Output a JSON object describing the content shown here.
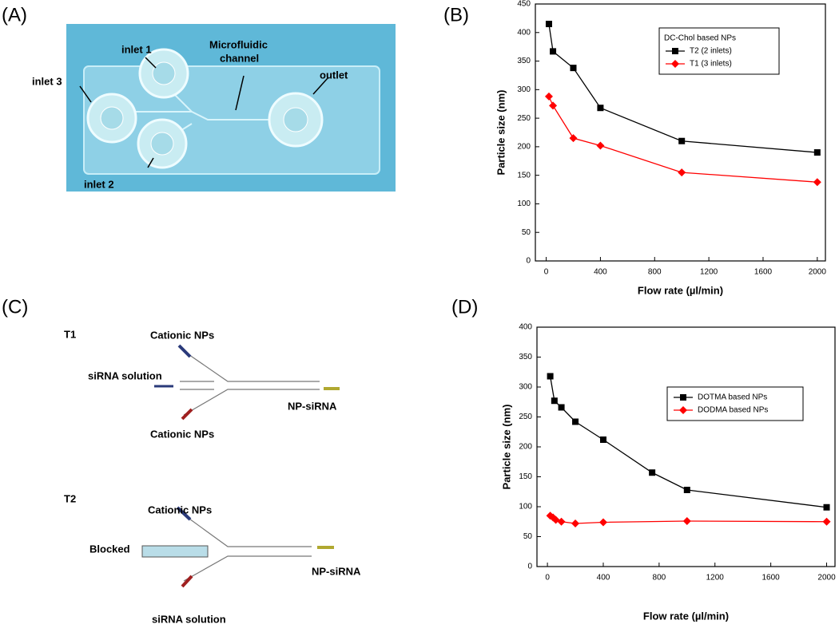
{
  "panels": [
    "(A)",
    "(B)",
    "(C)",
    "(D)"
  ],
  "photo": {
    "inlet_1": "inlet 1",
    "inlet_3": "inlet 3",
    "channel": [
      "Microfluidic",
      "channel"
    ],
    "outlet": "outlet",
    "inlet_2": "inlet 2"
  },
  "diagram": {
    "t1": {
      "title": "T1",
      "top": "Cationic NPs",
      "middle": "siRNA solution",
      "bottom": "Cationic NPs",
      "out": "NP-siRNA"
    },
    "t2": {
      "title": "T2",
      "top": "Cationic NPs",
      "middle": "Blocked",
      "bottom": "siRNA solution",
      "out": "NP-siRNA"
    }
  },
  "chart_data": [
    {
      "type": "line",
      "xlabel": "Flow rate (µl/min)",
      "ylabel": "Particle size (nm)",
      "xlim": [
        -80,
        2060
      ],
      "xticks": [
        0,
        400,
        800,
        1200,
        1600,
        2000
      ],
      "ylim": [
        0,
        450
      ],
      "yticks": [
        0,
        50,
        100,
        150,
        200,
        250,
        300,
        350,
        400,
        450
      ],
      "legend_title": "DC-Chol based NPs",
      "legend": "upper right",
      "series": [
        {
          "name": "T2 (2 inlets)",
          "color": "#000000",
          "marker": "square",
          "x": [
            20,
            50,
            200,
            400,
            1000,
            2000
          ],
          "values": [
            415,
            367,
            338,
            268,
            210,
            190
          ]
        },
        {
          "name": "T1 (3 inlets)",
          "color": "#ff0000",
          "marker": "diamond",
          "x": [
            20,
            50,
            200,
            400,
            1000,
            2000
          ],
          "values": [
            288,
            272,
            215,
            202,
            155,
            138
          ]
        }
      ]
    },
    {
      "type": "line",
      "xlabel": "Flow rate (µl/min)",
      "ylabel": "Particle size (nm)",
      "xlim": [
        -75,
        2060
      ],
      "xticks": [
        0,
        400,
        800,
        1200,
        1600,
        2000
      ],
      "ylim": [
        0,
        400
      ],
      "yticks": [
        0,
        50,
        100,
        150,
        200,
        250,
        300,
        350,
        400
      ],
      "legend": "upper right",
      "series": [
        {
          "name": "DOTMA based NPs",
          "color": "#000000",
          "marker": "square",
          "x": [
            20,
            50,
            100,
            200,
            400,
            750,
            1000,
            2000
          ],
          "values": [
            318,
            277,
            266,
            242,
            212,
            157,
            128,
            99
          ]
        },
        {
          "name": "DODMA based NPs",
          "color": "#ff0000",
          "marker": "diamond",
          "x": [
            20,
            40,
            60,
            100,
            200,
            400,
            1000,
            2000
          ],
          "values": [
            85,
            82,
            78,
            75,
            72,
            74,
            76,
            75
          ]
        }
      ]
    }
  ]
}
